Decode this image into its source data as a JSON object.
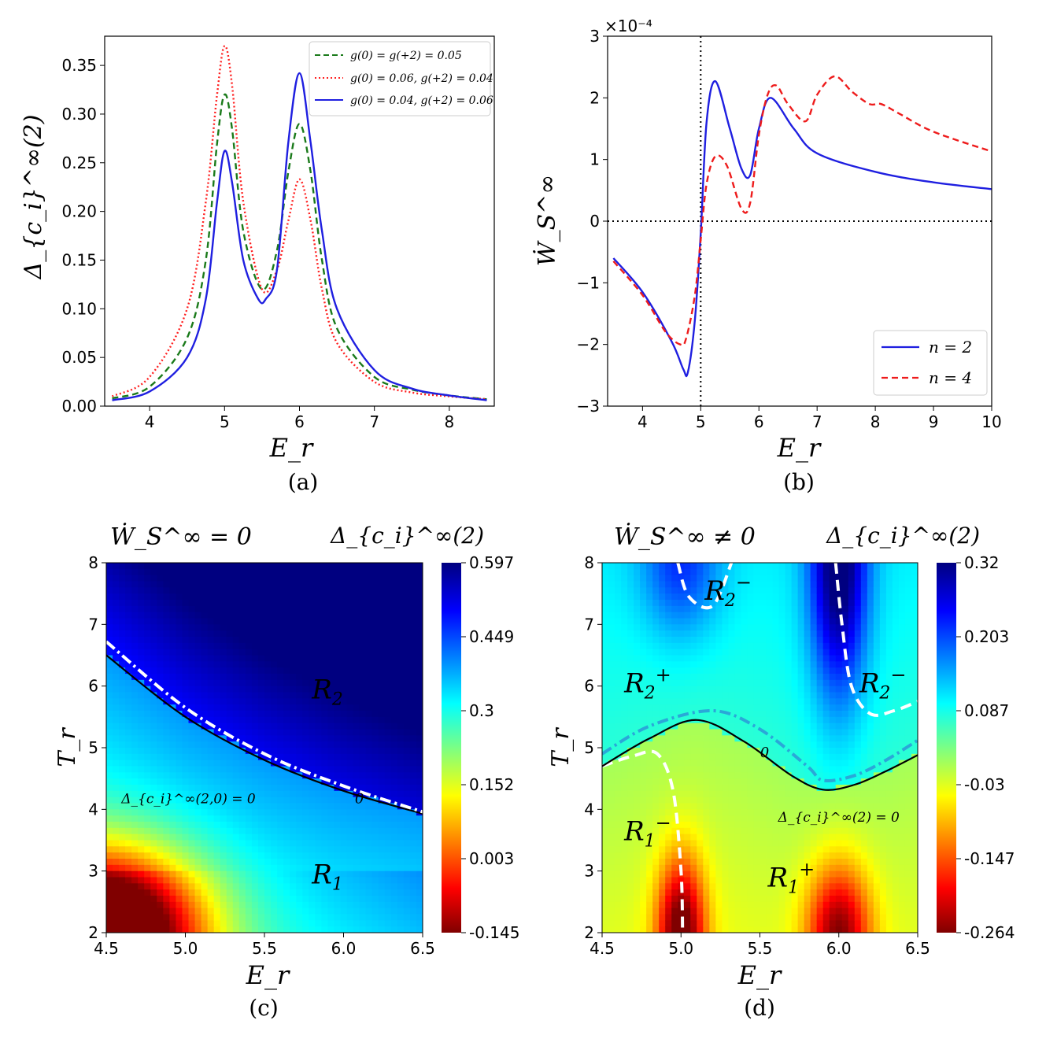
{
  "chart_data": [
    {
      "panel": "a",
      "type": "line",
      "caption": "(a)",
      "xlabel": "E_r",
      "ylabel": "Δ_{c_i}^∞(2)",
      "xlim": [
        3.4,
        8.6
      ],
      "ylim": [
        0,
        0.38
      ],
      "xticks": [
        "4",
        "5",
        "6",
        "7",
        "8"
      ],
      "yticks": [
        "0.00",
        "0.05",
        "0.10",
        "0.15",
        "0.20",
        "0.25",
        "0.30",
        "0.35"
      ],
      "legend": [
        "g(0) = g(+2) = 0.05",
        "g(0) = 0.06, g(+2) = 0.04",
        "g(0) = 0.04, g(+2) = 0.06"
      ],
      "series": [
        {
          "name": "g(0) = g(+2) = 0.05",
          "color": "#1a7a1a",
          "dash": "dashed",
          "x": [
            3.5,
            4.0,
            4.5,
            4.75,
            4.9,
            5.0,
            5.1,
            5.25,
            5.5,
            5.7,
            5.85,
            6.0,
            6.15,
            6.3,
            6.5,
            7.0,
            7.5,
            8.0,
            8.5
          ],
          "y": [
            0.008,
            0.02,
            0.07,
            0.15,
            0.27,
            0.32,
            0.285,
            0.18,
            0.12,
            0.16,
            0.24,
            0.29,
            0.24,
            0.15,
            0.08,
            0.03,
            0.017,
            0.011,
            0.007
          ]
        },
        {
          "name": "g(0) = 0.06, g(+2) = 0.04",
          "color": "#ff2020",
          "dash": "dotted",
          "x": [
            3.5,
            4.0,
            4.5,
            4.75,
            4.9,
            5.0,
            5.1,
            5.25,
            5.5,
            5.7,
            5.85,
            6.0,
            6.15,
            6.3,
            6.5,
            7.0,
            7.5,
            8.0,
            8.5
          ],
          "y": [
            0.01,
            0.03,
            0.1,
            0.21,
            0.32,
            0.37,
            0.33,
            0.21,
            0.12,
            0.14,
            0.19,
            0.233,
            0.19,
            0.12,
            0.065,
            0.025,
            0.014,
            0.01,
            0.007
          ]
        },
        {
          "name": "g(0) = 0.04, g(+2) = 0.06",
          "color": "#1f1fe0",
          "dash": "solid",
          "x": [
            3.5,
            4.0,
            4.5,
            4.75,
            4.9,
            5.0,
            5.1,
            5.25,
            5.45,
            5.55,
            5.7,
            5.85,
            6.0,
            6.15,
            6.3,
            6.5,
            7.0,
            7.5,
            8.0,
            8.5
          ],
          "y": [
            0.006,
            0.015,
            0.05,
            0.11,
            0.21,
            0.262,
            0.23,
            0.15,
            0.11,
            0.11,
            0.14,
            0.27,
            0.342,
            0.27,
            0.18,
            0.1,
            0.037,
            0.018,
            0.011,
            0.006
          ]
        }
      ]
    },
    {
      "panel": "b",
      "type": "line",
      "caption": "(b)",
      "xlabel": "E_r",
      "ylabel": "Ẇ_S^∞",
      "scale_label": "×10⁻⁴",
      "xlim": [
        3.4,
        10.0
      ],
      "ylim": [
        -3,
        3
      ],
      "xticks": [
        "4",
        "5",
        "6",
        "7",
        "8",
        "9",
        "10"
      ],
      "yticks": [
        "−3",
        "−2",
        "−1",
        "0",
        "1",
        "2",
        "3"
      ],
      "reference_lines": {
        "vertical_x": 5,
        "horizontal_y": 0
      },
      "legend": [
        "n = 2",
        "n = 4"
      ],
      "series": [
        {
          "name": "n = 2",
          "color": "#1f1fe0",
          "dash": "solid",
          "x": [
            3.5,
            4.0,
            4.5,
            4.7,
            4.78,
            4.9,
            5.0,
            5.1,
            5.25,
            5.5,
            5.7,
            5.85,
            6.0,
            6.2,
            6.6,
            7.0,
            8.0,
            9.0,
            10.0
          ],
          "y": [
            -0.6,
            -1.15,
            -1.95,
            -2.4,
            -2.45,
            -1.6,
            -0.2,
            1.6,
            2.27,
            1.5,
            0.85,
            0.75,
            1.5,
            2.0,
            1.5,
            1.1,
            0.8,
            0.63,
            0.52
          ]
        },
        {
          "name": "n = 4",
          "color": "#ee1c1c",
          "dash": "dashed",
          "x": [
            3.5,
            4.0,
            4.4,
            4.65,
            4.75,
            4.9,
            5.0,
            5.1,
            5.25,
            5.45,
            5.7,
            5.85,
            6.0,
            6.15,
            6.3,
            6.5,
            6.8,
            7.0,
            7.3,
            7.6,
            7.9,
            8.1,
            8.4,
            9.0,
            10.0
          ],
          "y": [
            -0.65,
            -1.2,
            -1.8,
            -2.0,
            -1.9,
            -1.2,
            -0.3,
            0.6,
            1.05,
            0.9,
            0.2,
            0.3,
            1.4,
            2.05,
            2.2,
            1.9,
            1.62,
            2.05,
            2.35,
            2.1,
            1.9,
            1.9,
            1.75,
            1.45,
            1.13
          ]
        }
      ]
    },
    {
      "panel": "c",
      "type": "heatmap",
      "caption": "(c)",
      "title": "Ẇ_S^∞ = 0",
      "colorbar_label": "Δ_{c_i}^∞(2)",
      "xlabel": "E_r",
      "ylabel": "T_r",
      "xlim": [
        4.5,
        6.5
      ],
      "ylim": [
        2,
        8
      ],
      "xticks": [
        "4.5",
        "5.0",
        "5.5",
        "6.0",
        "6.5"
      ],
      "yticks": [
        "2",
        "3",
        "4",
        "5",
        "6",
        "7",
        "8"
      ],
      "colorbar_range": [
        -0.145,
        0.597
      ],
      "colorbar_ticks": [
        "0.597",
        "0.449",
        "0.3",
        "0.152",
        "0.003",
        "-0.145"
      ],
      "contour_label": "0",
      "contour_text": "Δ_{c_i}^∞(2,0) = 0",
      "contour_zero": {
        "x": [
          4.5,
          5.0,
          5.5,
          6.0,
          6.5
        ],
        "y": [
          6.5,
          5.5,
          4.8,
          4.3,
          3.93
        ]
      },
      "dashdot_boundary": {
        "x": [
          4.5,
          5.0,
          5.5,
          6.0,
          6.5
        ],
        "y": [
          6.72,
          5.65,
          4.9,
          4.38,
          3.96
        ]
      },
      "region_labels": [
        "R2",
        "R1"
      ]
    },
    {
      "panel": "d",
      "type": "heatmap",
      "caption": "(d)",
      "title": "Ẇ_S^∞ ≠ 0",
      "colorbar_label": "Δ_{c_i}^∞(2)",
      "xlabel": "E_r",
      "ylabel": "T_r",
      "xlim": [
        4.5,
        6.5
      ],
      "ylim": [
        2,
        8
      ],
      "xticks": [
        "4.5",
        "5.0",
        "5.5",
        "6.0",
        "6.5"
      ],
      "yticks": [
        "2",
        "3",
        "4",
        "5",
        "6",
        "7",
        "8"
      ],
      "colorbar_range": [
        -0.264,
        0.32
      ],
      "colorbar_ticks": [
        "0.32",
        "0.203",
        "0.087",
        "-0.03",
        "-0.147",
        "-0.264"
      ],
      "contour_label": "0",
      "contour_text": "Δ_{c_i}^∞(2) = 0",
      "contour_zero": {
        "x": [
          4.5,
          4.8,
          5.1,
          5.4,
          5.7,
          5.9,
          6.1,
          6.3,
          6.5
        ],
        "y": [
          4.7,
          5.15,
          5.45,
          5.1,
          4.55,
          4.32,
          4.4,
          4.62,
          4.88
        ]
      },
      "dashdot_boundary": {
        "x": [
          4.5,
          4.8,
          5.2,
          5.5,
          5.8,
          5.9,
          6.1,
          6.3,
          6.5
        ],
        "y": [
          4.9,
          5.35,
          5.6,
          5.3,
          4.7,
          4.47,
          4.55,
          4.8,
          5.12
        ]
      },
      "region_labels": [
        "R2−",
        "R2+",
        "R2−",
        "R1−",
        "R1+"
      ]
    }
  ]
}
